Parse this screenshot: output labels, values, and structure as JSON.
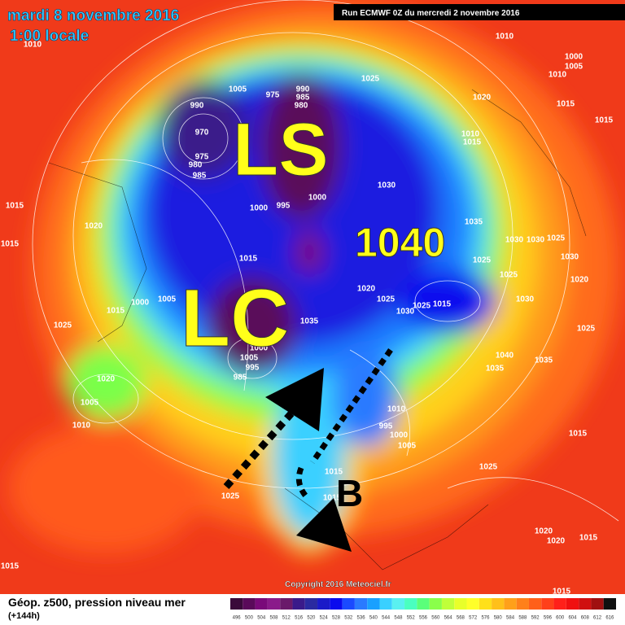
{
  "header": {
    "date": "mardi 8 novembre 2016",
    "time": "1:00 locale",
    "run": "Run ECMWF 0Z du mercredi 2 novembre 2016"
  },
  "annotations": {
    "ls": "LS",
    "lc": "LC",
    "high": "1040",
    "b": "B"
  },
  "isobar_labels": [
    "1010",
    "1010",
    "1000",
    "1005",
    "1010",
    "1025",
    "1005",
    "975",
    "990",
    "985",
    "980",
    "990",
    "1020",
    "1015",
    "1015",
    "1010",
    "1015",
    "970",
    "975",
    "980",
    "985",
    "1030",
    "1000",
    "995",
    "1000",
    "1015",
    "1020",
    "1035",
    "1030",
    "1030",
    "1025",
    "1015",
    "1025",
    "1030",
    "1020",
    "1025",
    "1015",
    "1005",
    "1000",
    "1015",
    "1020",
    "1025",
    "1030",
    "1025",
    "1015",
    "1035",
    "1030",
    "1025",
    "1025",
    "1040",
    "1035",
    "1035",
    "1000",
    "1005",
    "995",
    "985",
    "1020",
    "1005",
    "1010",
    "1010",
    "995",
    "1000",
    "1005",
    "1015",
    "1025",
    "1025",
    "1015",
    "1015",
    "1020",
    "1020",
    "1015",
    "1015",
    "1015"
  ],
  "copyright": "Copyright 2016 Meteociel.fr",
  "footer": {
    "title": "Géop. z500, pression niveau mer",
    "lead": "(+144h)"
  },
  "colorbar": {
    "ticks": [
      496,
      500,
      504,
      508,
      512,
      516,
      520,
      524,
      528,
      532,
      536,
      540,
      544,
      548,
      552,
      556,
      560,
      564,
      568,
      572,
      576,
      580,
      584,
      588,
      592,
      596,
      600,
      604,
      608,
      612,
      616
    ],
    "colors": [
      "#3a0a3a",
      "#5a0a5a",
      "#7a0a7a",
      "#8a1a8a",
      "#6a1a6a",
      "#3a1a8a",
      "#2a2aa0",
      "#1a1ac8",
      "#0a0aee",
      "#1a4aff",
      "#2a7aff",
      "#1aa0ff",
      "#3ad0ff",
      "#5af0f0",
      "#4affc0",
      "#5aff7a",
      "#8aff4a",
      "#c0ff3a",
      "#e8ff2a",
      "#ffff2a",
      "#ffe01a",
      "#ffc01a",
      "#ffa01a",
      "#ff801a",
      "#ff601a",
      "#ff401a",
      "#ff201a",
      "#f01010",
      "#d01010",
      "#a01010",
      "#101010"
    ]
  }
}
